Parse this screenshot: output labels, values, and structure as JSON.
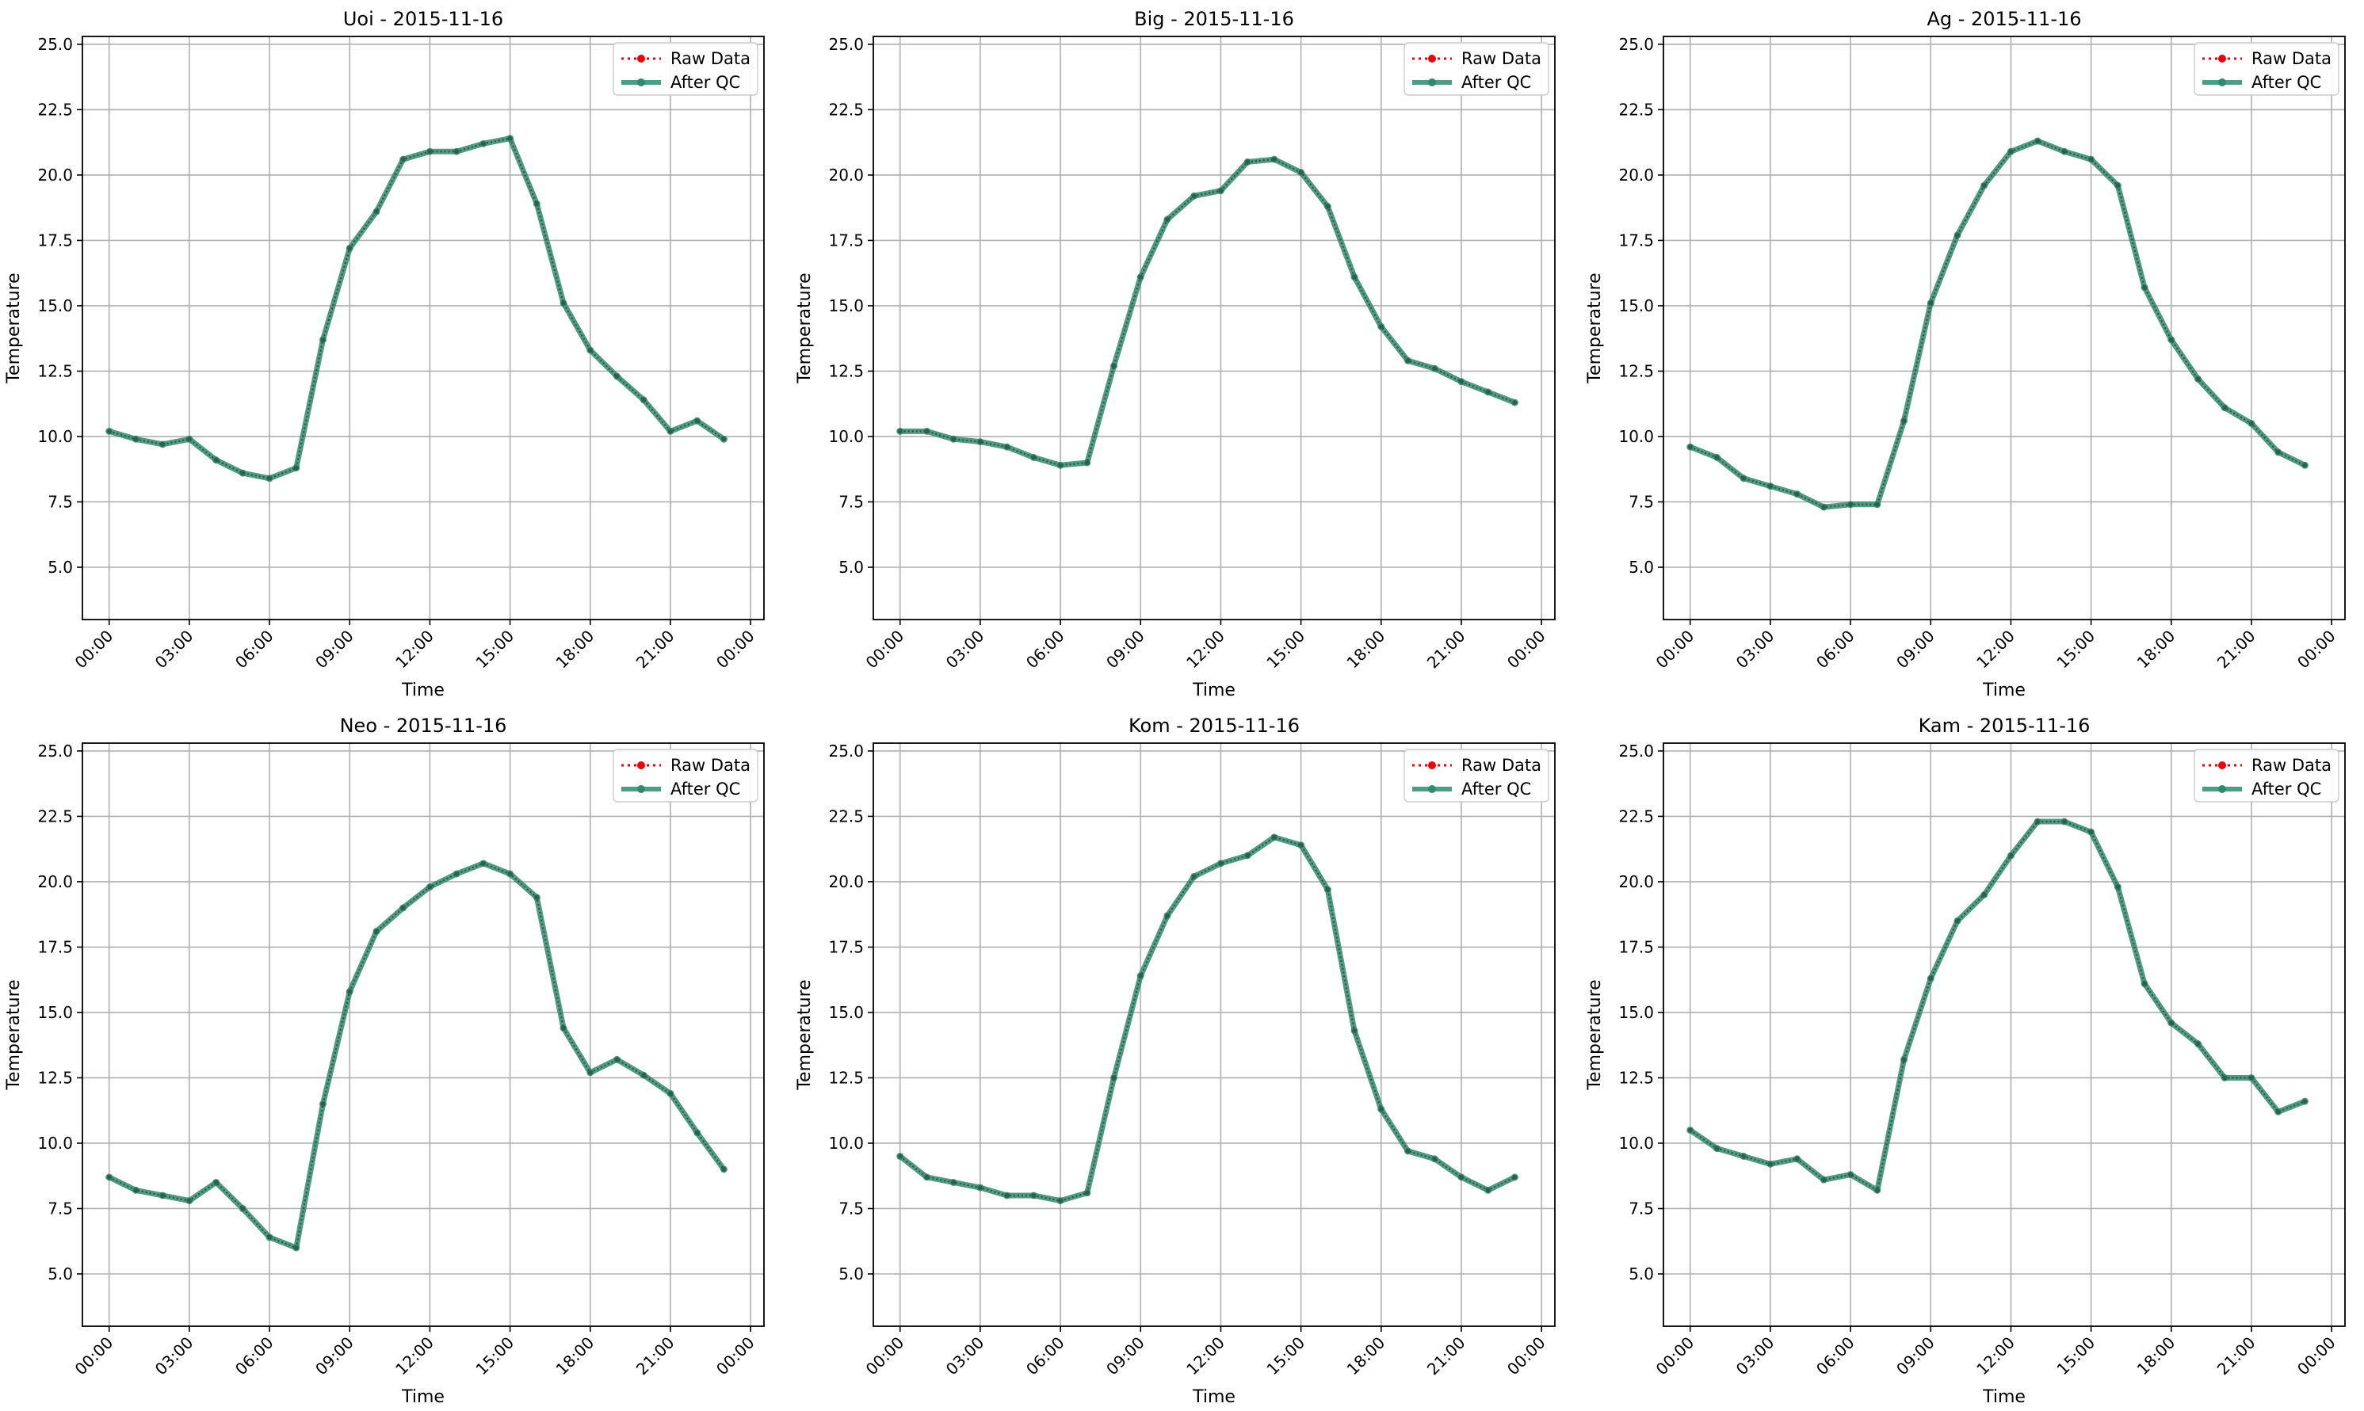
{
  "colors": {
    "raw": "#e8000b",
    "qc": "#2e8b6e",
    "grid": "#b0b0b0",
    "axis": "#000000"
  },
  "chart_data": [
    {
      "type": "line",
      "title": "Uoi - 2015-11-16",
      "xlabel": "Time",
      "ylabel": "Temperature",
      "x_unit": "hour",
      "x": [
        0,
        1,
        2,
        3,
        4,
        5,
        6,
        7,
        8,
        9,
        10,
        11,
        12,
        13,
        14,
        15,
        16,
        17,
        18,
        19,
        20,
        21,
        22,
        23
      ],
      "xlim": [
        "23:00 prev",
        "00:30 next"
      ],
      "xticks": [
        "00:00",
        "03:00",
        "06:00",
        "09:00",
        "12:00",
        "15:00",
        "18:00",
        "21:00",
        "00:00"
      ],
      "ylim": [
        3.0,
        25.3
      ],
      "yticks": [
        "5.0",
        "7.5",
        "10.0",
        "12.5",
        "15.0",
        "17.5",
        "20.0",
        "22.5",
        "25.0"
      ],
      "grid": true,
      "legend": "top-right",
      "series": [
        {
          "name": "Raw Data",
          "values": [
            10.2,
            9.9,
            9.7,
            9.9,
            9.1,
            8.6,
            8.4,
            8.8,
            13.7,
            17.2,
            18.6,
            20.6,
            20.9,
            20.9,
            21.2,
            21.4,
            18.9,
            15.1,
            13.3,
            12.3,
            11.4,
            10.2,
            10.6,
            9.9
          ]
        },
        {
          "name": "After QC",
          "values": [
            10.2,
            9.9,
            9.7,
            9.9,
            9.1,
            8.6,
            8.4,
            8.8,
            13.7,
            17.2,
            18.6,
            20.6,
            20.9,
            20.9,
            21.2,
            21.4,
            18.9,
            15.1,
            13.3,
            12.3,
            11.4,
            10.2,
            10.6,
            9.9
          ]
        }
      ]
    },
    {
      "type": "line",
      "title": "Big - 2015-11-16",
      "xlabel": "Time",
      "ylabel": "Temperature",
      "x_unit": "hour",
      "x": [
        0,
        1,
        2,
        3,
        4,
        5,
        6,
        7,
        8,
        9,
        10,
        11,
        12,
        13,
        14,
        15,
        16,
        17,
        18,
        19,
        20,
        21,
        22,
        23
      ],
      "xlim": [
        "23:00 prev",
        "00:30 next"
      ],
      "xticks": [
        "00:00",
        "03:00",
        "06:00",
        "09:00",
        "12:00",
        "15:00",
        "18:00",
        "21:00",
        "00:00"
      ],
      "ylim": [
        3.0,
        25.3
      ],
      "yticks": [
        "5.0",
        "7.5",
        "10.0",
        "12.5",
        "15.0",
        "17.5",
        "20.0",
        "22.5",
        "25.0"
      ],
      "grid": true,
      "legend": "top-right",
      "series": [
        {
          "name": "Raw Data",
          "values": [
            10.2,
            10.2,
            9.9,
            9.8,
            9.6,
            9.2,
            8.9,
            9.0,
            12.7,
            16.1,
            18.3,
            19.2,
            19.4,
            20.5,
            20.6,
            20.1,
            18.8,
            16.1,
            14.2,
            12.9,
            12.6,
            12.1,
            11.7,
            11.3
          ]
        },
        {
          "name": "After QC",
          "values": [
            10.2,
            10.2,
            9.9,
            9.8,
            9.6,
            9.2,
            8.9,
            9.0,
            12.7,
            16.1,
            18.3,
            19.2,
            19.4,
            20.5,
            20.6,
            20.1,
            18.8,
            16.1,
            14.2,
            12.9,
            12.6,
            12.1,
            11.7,
            11.3
          ]
        }
      ]
    },
    {
      "type": "line",
      "title": "Ag - 2015-11-16",
      "xlabel": "Time",
      "ylabel": "Temperature",
      "x_unit": "hour",
      "x": [
        0,
        1,
        2,
        3,
        4,
        5,
        6,
        7,
        8,
        9,
        10,
        11,
        12,
        13,
        14,
        15,
        16,
        17,
        18,
        19,
        20,
        21,
        22,
        23
      ],
      "xlim": [
        "23:00 prev",
        "00:30 next"
      ],
      "xticks": [
        "00:00",
        "03:00",
        "06:00",
        "09:00",
        "12:00",
        "15:00",
        "18:00",
        "21:00",
        "00:00"
      ],
      "ylim": [
        3.0,
        25.3
      ],
      "yticks": [
        "5.0",
        "7.5",
        "10.0",
        "12.5",
        "15.0",
        "17.5",
        "20.0",
        "22.5",
        "25.0"
      ],
      "grid": true,
      "legend": "top-right",
      "series": [
        {
          "name": "Raw Data",
          "values": [
            9.6,
            9.2,
            8.4,
            8.1,
            7.8,
            7.3,
            7.4,
            7.4,
            10.6,
            15.1,
            17.7,
            19.6,
            20.9,
            21.3,
            20.9,
            20.6,
            19.6,
            15.7,
            13.7,
            12.2,
            11.1,
            10.5,
            9.4,
            8.9
          ]
        },
        {
          "name": "After QC",
          "values": [
            9.6,
            9.2,
            8.4,
            8.1,
            7.8,
            7.3,
            7.4,
            7.4,
            10.6,
            15.1,
            17.7,
            19.6,
            20.9,
            21.3,
            20.9,
            20.6,
            19.6,
            15.7,
            13.7,
            12.2,
            11.1,
            10.5,
            9.4,
            8.9
          ]
        }
      ]
    },
    {
      "type": "line",
      "title": "Neo - 2015-11-16",
      "xlabel": "Time",
      "ylabel": "Temperature",
      "x_unit": "hour",
      "x": [
        0,
        1,
        2,
        3,
        4,
        5,
        6,
        7,
        8,
        9,
        10,
        11,
        12,
        13,
        14,
        15,
        16,
        17,
        18,
        19,
        20,
        21,
        22,
        23
      ],
      "xlim": [
        "23:00 prev",
        "00:30 next"
      ],
      "xticks": [
        "00:00",
        "03:00",
        "06:00",
        "09:00",
        "12:00",
        "15:00",
        "18:00",
        "21:00",
        "00:00"
      ],
      "ylim": [
        3.0,
        25.3
      ],
      "yticks": [
        "5.0",
        "7.5",
        "10.0",
        "12.5",
        "15.0",
        "17.5",
        "20.0",
        "22.5",
        "25.0"
      ],
      "grid": true,
      "legend": "top-right",
      "series": [
        {
          "name": "Raw Data",
          "values": [
            8.7,
            8.2,
            8.0,
            7.8,
            8.5,
            7.5,
            6.4,
            6.0,
            11.5,
            15.8,
            18.1,
            19.0,
            19.8,
            20.3,
            20.7,
            20.3,
            19.4,
            14.4,
            12.7,
            13.2,
            12.6,
            11.9,
            10.4,
            9.0
          ]
        },
        {
          "name": "After QC",
          "values": [
            8.7,
            8.2,
            8.0,
            7.8,
            8.5,
            7.5,
            6.4,
            6.0,
            11.5,
            15.8,
            18.1,
            19.0,
            19.8,
            20.3,
            20.7,
            20.3,
            19.4,
            14.4,
            12.7,
            13.2,
            12.6,
            11.9,
            10.4,
            9.0
          ]
        }
      ]
    },
    {
      "type": "line",
      "title": "Kom - 2015-11-16",
      "xlabel": "Time",
      "ylabel": "Temperature",
      "x_unit": "hour",
      "x": [
        0,
        1,
        2,
        3,
        4,
        5,
        6,
        7,
        8,
        9,
        10,
        11,
        12,
        13,
        14,
        15,
        16,
        17,
        18,
        19,
        20,
        21,
        22,
        23
      ],
      "xlim": [
        "23:00 prev",
        "00:30 next"
      ],
      "xticks": [
        "00:00",
        "03:00",
        "06:00",
        "09:00",
        "12:00",
        "15:00",
        "18:00",
        "21:00",
        "00:00"
      ],
      "ylim": [
        3.0,
        25.3
      ],
      "yticks": [
        "5.0",
        "7.5",
        "10.0",
        "12.5",
        "15.0",
        "17.5",
        "20.0",
        "22.5",
        "25.0"
      ],
      "grid": true,
      "legend": "top-right",
      "series": [
        {
          "name": "Raw Data",
          "values": [
            9.5,
            8.7,
            8.5,
            8.3,
            8.0,
            8.0,
            7.8,
            8.1,
            12.5,
            16.4,
            18.7,
            20.2,
            20.7,
            21.0,
            21.7,
            21.4,
            19.7,
            14.3,
            11.3,
            9.7,
            9.4,
            8.7,
            8.2,
            8.7
          ]
        },
        {
          "name": "After QC",
          "values": [
            9.5,
            8.7,
            8.5,
            8.3,
            8.0,
            8.0,
            7.8,
            8.1,
            12.5,
            16.4,
            18.7,
            20.2,
            20.7,
            21.0,
            21.7,
            21.4,
            19.7,
            14.3,
            11.3,
            9.7,
            9.4,
            8.7,
            8.2,
            8.7
          ]
        }
      ]
    },
    {
      "type": "line",
      "title": "Kam - 2015-11-16",
      "xlabel": "Time",
      "ylabel": "Temperature",
      "x_unit": "hour",
      "x": [
        0,
        1,
        2,
        3,
        4,
        5,
        6,
        7,
        8,
        9,
        10,
        11,
        12,
        13,
        14,
        15,
        16,
        17,
        18,
        19,
        20,
        21,
        22,
        23
      ],
      "xlim": [
        "23:00 prev",
        "00:30 next"
      ],
      "xticks": [
        "00:00",
        "03:00",
        "06:00",
        "09:00",
        "12:00",
        "15:00",
        "18:00",
        "21:00",
        "00:00"
      ],
      "ylim": [
        3.0,
        25.3
      ],
      "yticks": [
        "5.0",
        "7.5",
        "10.0",
        "12.5",
        "15.0",
        "17.5",
        "20.0",
        "22.5",
        "25.0"
      ],
      "grid": true,
      "legend": "top-right",
      "series": [
        {
          "name": "Raw Data",
          "values": [
            10.5,
            9.8,
            9.5,
            9.2,
            9.4,
            8.6,
            8.8,
            8.2,
            13.2,
            16.3,
            18.5,
            19.5,
            21.0,
            22.3,
            22.3,
            21.9,
            19.8,
            16.1,
            14.6,
            13.8,
            12.5,
            12.5,
            11.2,
            11.6
          ]
        },
        {
          "name": "After QC",
          "values": [
            10.5,
            9.8,
            9.5,
            9.2,
            9.4,
            8.6,
            8.8,
            8.2,
            13.2,
            16.3,
            18.5,
            19.5,
            21.0,
            22.3,
            22.3,
            21.9,
            19.8,
            16.1,
            14.6,
            13.8,
            12.5,
            12.5,
            11.2,
            11.6
          ]
        }
      ]
    }
  ]
}
